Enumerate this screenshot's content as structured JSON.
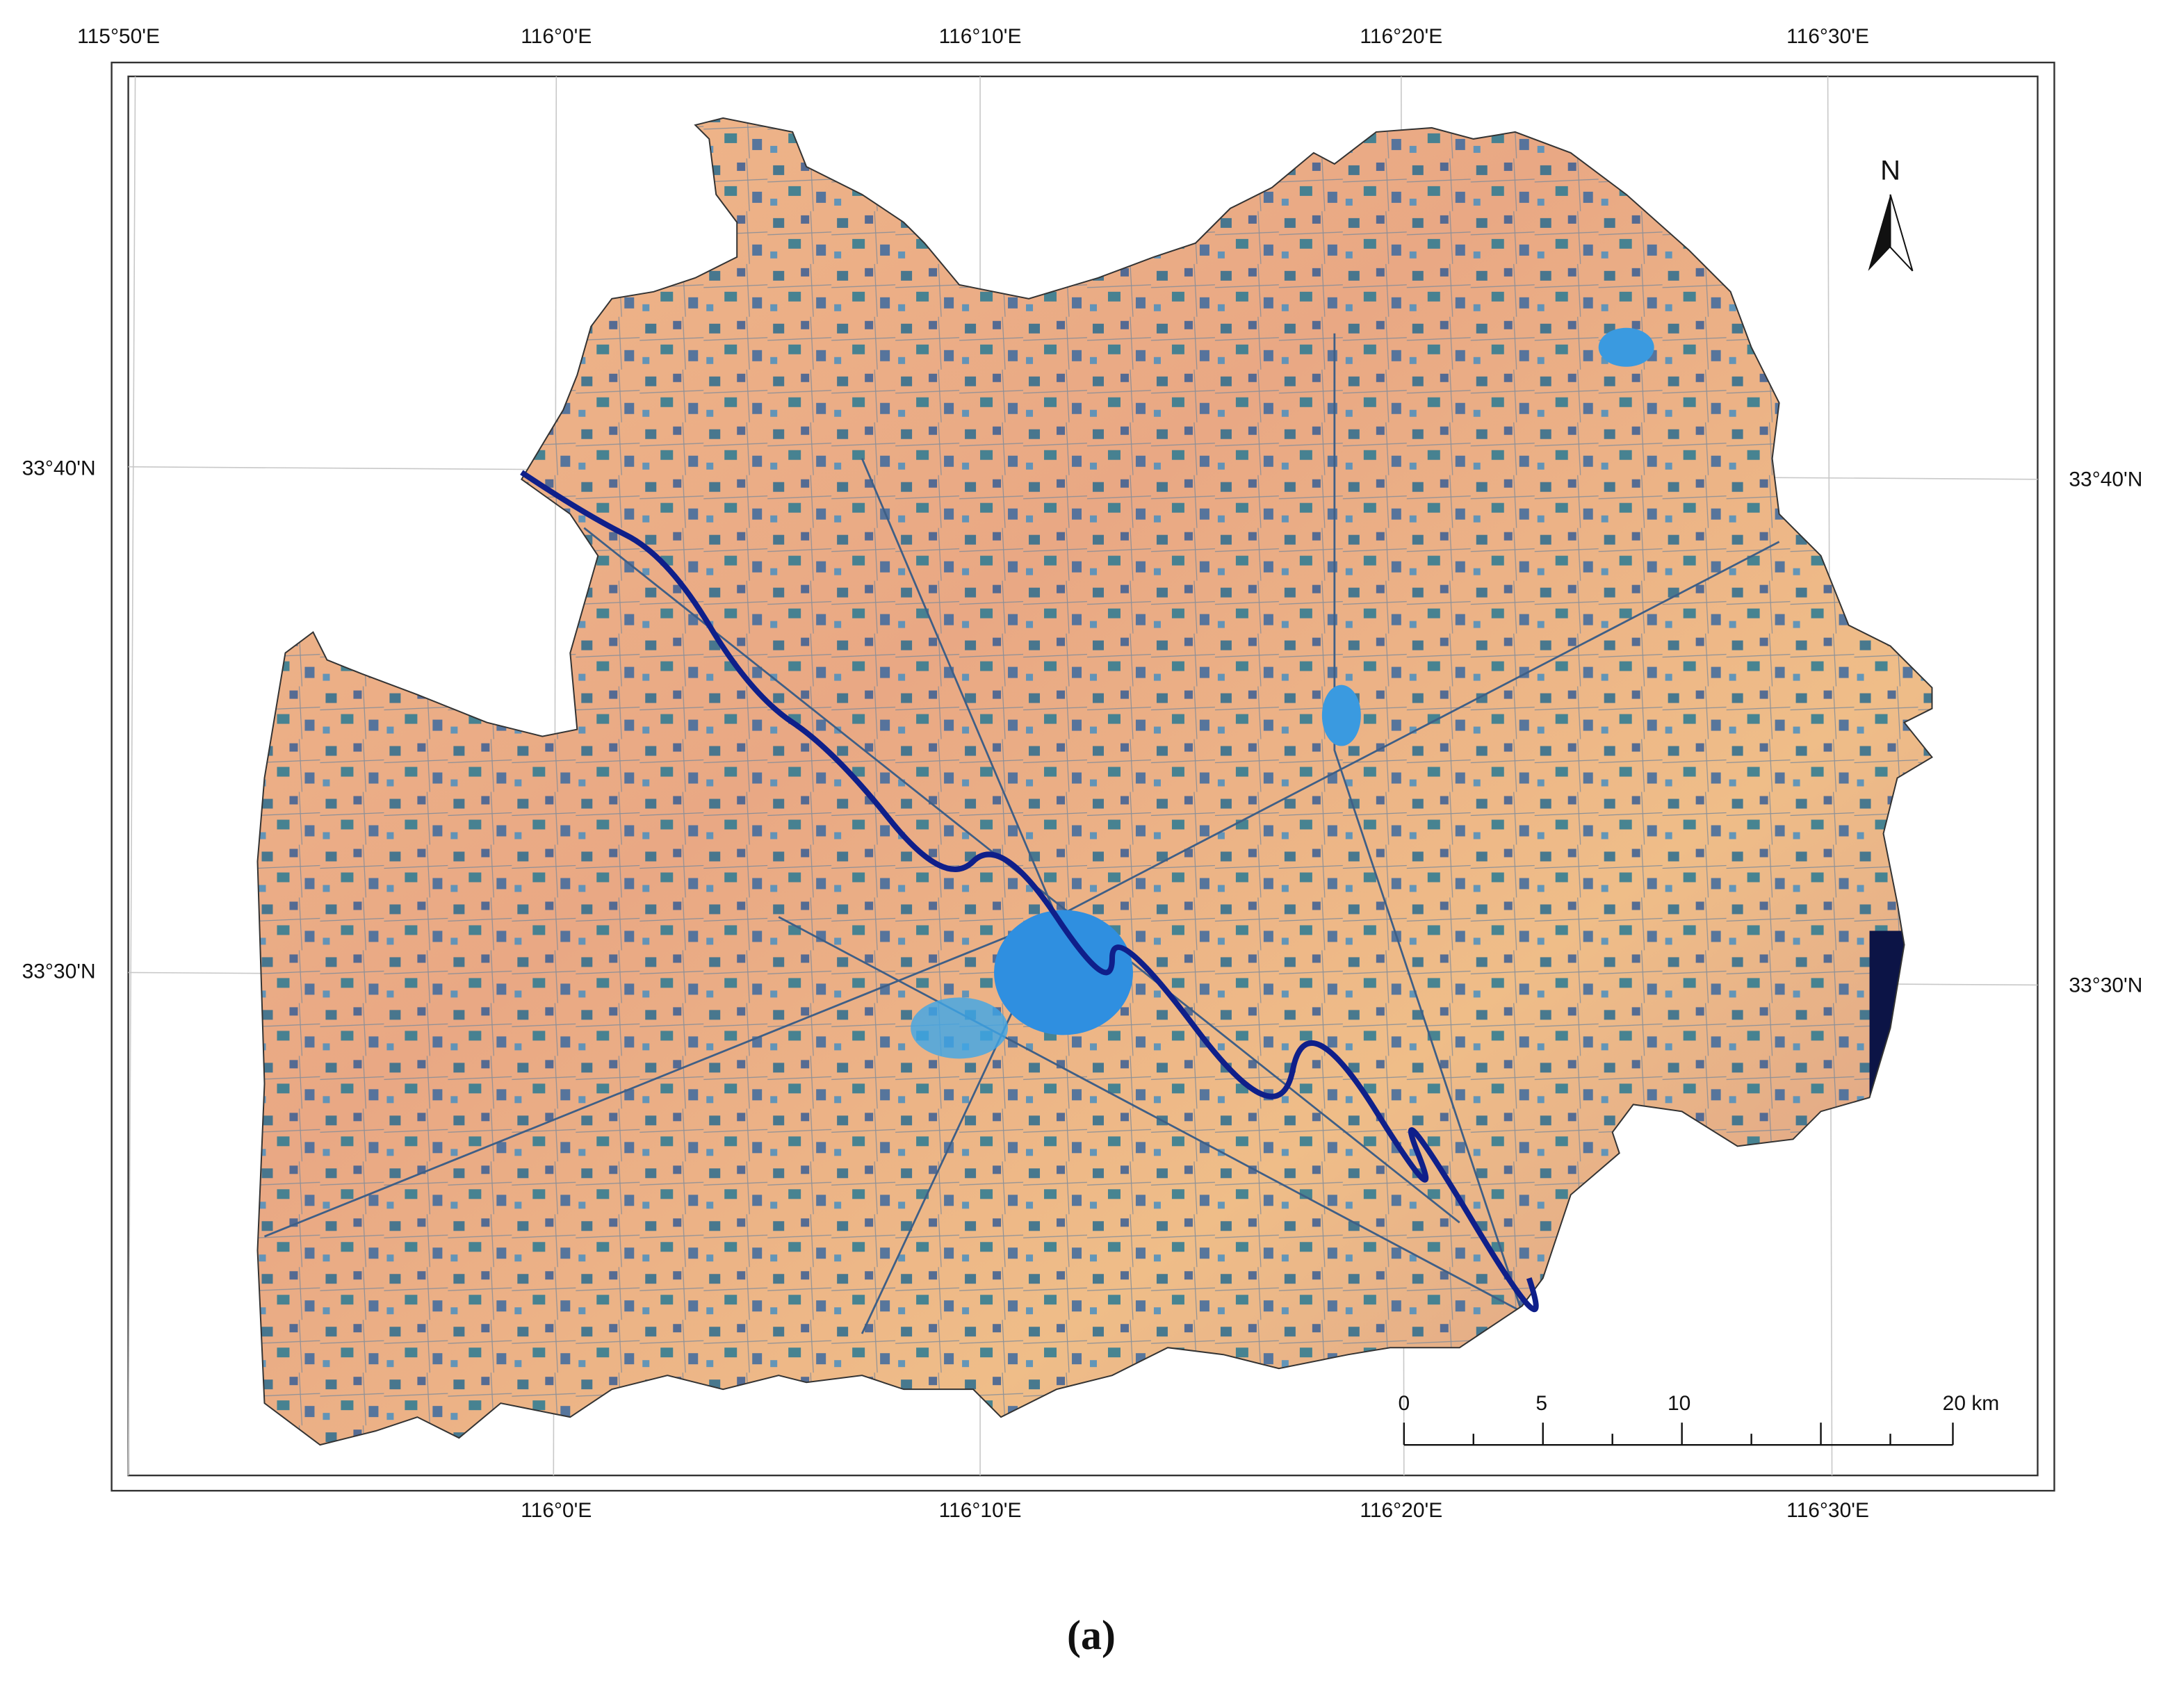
{
  "map": {
    "top_labels": [
      "115°50'E",
      "116°0'E",
      "116°10'E",
      "116°20'E",
      "116°30'E"
    ],
    "bottom_labels": [
      "116°0'E",
      "116°10'E",
      "116°20'E",
      "116°30'E"
    ],
    "left_labels": [
      "33°40'N",
      "33°30'N"
    ],
    "right_labels": [
      "33°40'N",
      "33°30'N"
    ],
    "north": "N",
    "scale_labels": [
      "0",
      "5",
      "10",
      "20 km"
    ],
    "caption": "(a)"
  }
}
